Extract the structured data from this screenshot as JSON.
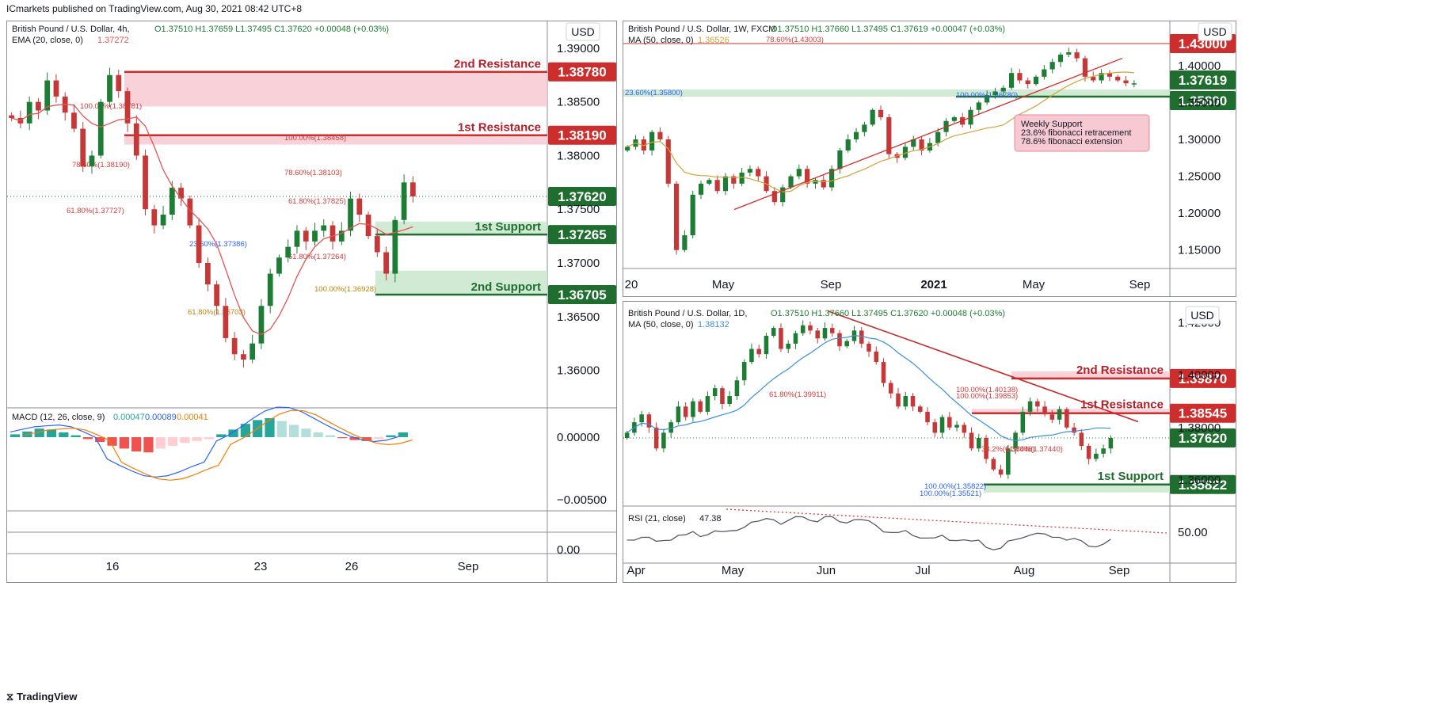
{
  "header": {
    "publisher_line": "ICmarkets published on TradingView.com, Aug 30, 2021 08:42 UTC+8"
  },
  "footer": {
    "brand": "TradingView"
  },
  "chart_data": [
    {
      "id": "h4",
      "type": "candlestick",
      "title": "British Pound / U.S. Dollar, 4h,",
      "ohlc_text": "O1.37510  H1.37659  L1.37495  C1.37620  +0.00048 (+0.03%)",
      "indicator_label": "EMA (20, close, 0)",
      "indicator_value": "1.37272",
      "currency": "USD",
      "ylim": [
        1.3565,
        1.3925
      ],
      "yticks": [
        "1.39000",
        "1.38500",
        "1.38000",
        "1.37500",
        "1.37000",
        "1.36500",
        "1.36000"
      ],
      "xticks": [
        "16",
        "23",
        "26",
        "Sep"
      ],
      "price_tag": "1.37620",
      "zones": [
        {
          "label": "2nd Resistance",
          "value": "1.38780",
          "from": 1.38458,
          "to": 1.3878,
          "kind": "res"
        },
        {
          "label": "1st Resistance",
          "value": "1.38190",
          "from": 1.38103,
          "to": 1.3819,
          "kind": "res"
        },
        {
          "label": "1st Support",
          "value": "1.37265",
          "from": 1.37265,
          "to": 1.37386,
          "kind": "sup"
        },
        {
          "label": "2nd Support",
          "value": "1.36705",
          "from": 1.36705,
          "to": 1.36928,
          "kind": "sup"
        }
      ],
      "fib_labels": [
        "100.00%(1.38781)",
        "100.00%(1.38458)",
        "78.60%(1.38190)",
        "78.60%(1.38103)",
        "61.80%(1.37825)",
        "61.80%(1.37727)",
        "23.60%(1.37386)",
        "61.80%(1.37264)",
        "100.00%(1.36928)",
        "61.80%(1.36703)"
      ],
      "close_series": [
        1.3835,
        1.383,
        1.385,
        1.3842,
        1.387,
        1.3855,
        1.384,
        1.3825,
        1.379,
        1.38,
        1.385,
        1.3875,
        1.386,
        1.383,
        1.38,
        1.375,
        1.3735,
        1.3745,
        1.377,
        1.376,
        1.3735,
        1.37,
        1.368,
        1.366,
        1.363,
        1.3615,
        1.361,
        1.3625,
        1.366,
        1.369,
        1.3705,
        1.3715,
        1.373,
        1.372,
        1.373,
        1.3735,
        1.372,
        1.373,
        1.376,
        1.3745,
        1.3725,
        1.371,
        1.369,
        1.374,
        1.3775,
        1.3762
      ],
      "macd": {
        "label": "MACD (12, 26, close, 9)",
        "values": [
          "0.00047",
          "0.00089",
          "0.00041"
        ],
        "yticks": [
          "0.00000",
          "−0.00500",
          "0.00"
        ],
        "histogram": [
          0.3,
          0.6,
          0.9,
          0.8,
          0.5,
          0.2,
          -0.2,
          -0.5,
          -0.9,
          -1.2,
          -1.5,
          -1.6,
          -1.2,
          -0.9,
          -0.6,
          -0.4,
          -0.2,
          0.3,
          0.8,
          1.4,
          1.8,
          2.0,
          1.7,
          1.3,
          0.9,
          0.5,
          0.2,
          -0.1,
          -0.3,
          -0.4,
          -0.2,
          0.2,
          0.5
        ]
      }
    },
    {
      "id": "w1",
      "type": "candlestick",
      "title": "British Pound / U.S. Dollar, 1W, FXCM",
      "ohlc_text": "O1.37510  H1.37660  L1.37495  C1.37619  +0.00047 (+0.03%)",
      "indicator_label": "MA (50, close, 0)",
      "indicator_value": "1.36526",
      "currency": "USD",
      "ylim": [
        1.125,
        1.46
      ],
      "yticks": [
        "1.40000",
        "1.35000",
        "1.30000",
        "1.25000",
        "1.20000",
        "1.15000"
      ],
      "xticks": [
        "20",
        "May",
        "Sep",
        "2021",
        "May",
        "Sep"
      ],
      "tags": [
        {
          "value": "1.43000",
          "color": "#cc2e2e"
        },
        {
          "value": "1.37619",
          "color": "#1f6e2f"
        },
        {
          "value": "1.35800",
          "color": "#1f6e2f"
        }
      ],
      "fib_labels": [
        "78.60%(1.43003)",
        "23.60%(1.35800)",
        "100.00%(1.36780)"
      ],
      "note": [
        "Weekly Support",
        "23.6% fibonacci retracement",
        "78.6% fibonacci extension"
      ],
      "close_series": [
        1.29,
        1.3,
        1.285,
        1.31,
        1.3,
        1.24,
        1.15,
        1.17,
        1.225,
        1.24,
        1.245,
        1.23,
        1.25,
        1.24,
        1.255,
        1.26,
        1.25,
        1.23,
        1.215,
        1.235,
        1.25,
        1.26,
        1.24,
        1.245,
        1.235,
        1.26,
        1.285,
        1.3,
        1.31,
        1.32,
        1.34,
        1.33,
        1.28,
        1.275,
        1.29,
        1.3,
        1.285,
        1.295,
        1.31,
        1.325,
        1.33,
        1.32,
        1.34,
        1.35,
        1.36,
        1.365,
        1.37,
        1.39,
        1.38,
        1.375,
        1.385,
        1.395,
        1.405,
        1.415,
        1.418,
        1.41,
        1.385,
        1.38,
        1.39,
        1.385,
        1.38,
        1.376,
        1.376
      ]
    },
    {
      "id": "d1",
      "type": "candlestick",
      "title": "British Pound / U.S. Dollar, 1D,",
      "ohlc_text": "O1.37510  H1.37660  L1.37495  C1.37620  +0.00048 (+0.03%)",
      "indicator_label": "MA (50, close, 0)",
      "indicator_value": "1.38132",
      "currency": "USD",
      "ylim": [
        1.35,
        1.428
      ],
      "yticks": [
        "1.42000",
        "1.40000",
        "1.38000",
        "1.36000"
      ],
      "xticks": [
        "Apr",
        "May",
        "Jun",
        "Jul",
        "Aug",
        "Sep"
      ],
      "tags": [
        {
          "value": "1.39870",
          "color": "#cc2e2e"
        },
        {
          "value": "1.38545",
          "color": "#cc2e2e"
        },
        {
          "value": "1.37620",
          "color": "#1f6e2f"
        },
        {
          "value": "1.35822",
          "color": "#1f6e2f"
        }
      ],
      "zones": [
        {
          "label": "2nd Resistance",
          "value": "1.39870"
        },
        {
          "label": "1st Resistance",
          "value": "1.38545"
        },
        {
          "label": "1st Support",
          "value": "1.35822"
        }
      ],
      "fib_labels": [
        "100.00%(1.40138)",
        "100.00%(1.39853)",
        "61.80%(1.39911)",
        "38.2%(1.37446)",
        "61.80%(1.37440)",
        "100.00%(1.35822)",
        "100.00%(1.35521)"
      ],
      "close_series": [
        1.378,
        1.382,
        1.385,
        1.38,
        1.372,
        1.378,
        1.382,
        1.388,
        1.384,
        1.39,
        1.386,
        1.392,
        1.395,
        1.389,
        1.392,
        1.398,
        1.405,
        1.41,
        1.408,
        1.415,
        1.418,
        1.41,
        1.412,
        1.416,
        1.419,
        1.417,
        1.414,
        1.418,
        1.416,
        1.411,
        1.413,
        1.417,
        1.412,
        1.409,
        1.405,
        1.397,
        1.393,
        1.388,
        1.392,
        1.388,
        1.386,
        1.382,
        1.378,
        1.384,
        1.38,
        1.381,
        1.378,
        1.372,
        1.376,
        1.368,
        1.364,
        1.362,
        1.372,
        1.378,
        1.386,
        1.39,
        1.388,
        1.385,
        1.383,
        1.387,
        1.38,
        1.378,
        1.373,
        1.368,
        1.37,
        1.372,
        1.376
      ],
      "rsi": {
        "label": "RSI (21, close)",
        "value": "47.38",
        "ytick": "50.00"
      }
    }
  ],
  "colors": {
    "up": "#1e7d34",
    "down": "#c63838",
    "res_zone": "#f7c9d2",
    "sup_zone": "#c9e6cd",
    "res_tag": "#cc2e2e",
    "sup_tag": "#1f6e2f",
    "ema": "#e55353",
    "ma_w": "#d4a23a",
    "ma_d": "#3a8fe0"
  }
}
